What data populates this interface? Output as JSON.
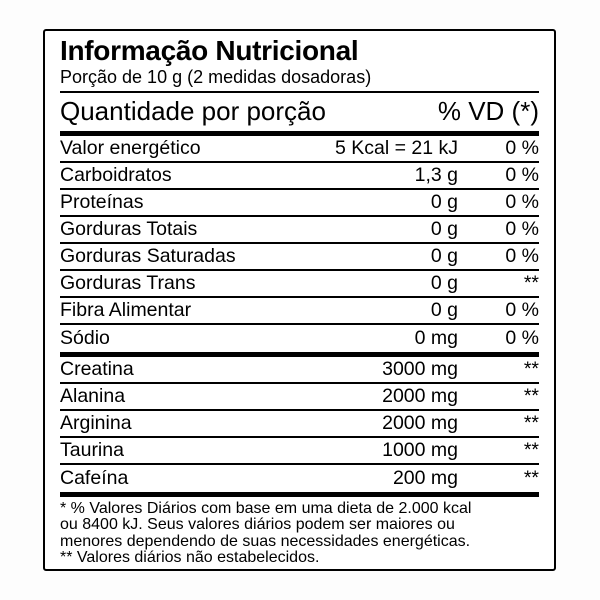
{
  "colors": {
    "text": "#000000",
    "background": "#ffffff",
    "border": "#000000"
  },
  "label": {
    "title": "Informação Nutricional",
    "serving": "Porção de 10 g (2 medidas dosadoras)",
    "header": {
      "quantity": "Quantidade por porção",
      "vd": "% VD (*)"
    },
    "rows": [
      {
        "name": "Valor energético",
        "value": "5 Kcal = 21 kJ",
        "vd": "0 %"
      },
      {
        "name": "Carboidratos",
        "value": "1,3 g",
        "vd": "0 %"
      },
      {
        "name": "Proteínas",
        "value": "0 g",
        "vd": "0 %"
      },
      {
        "name": "Gorduras Totais",
        "value": "0 g",
        "vd": "0 %"
      },
      {
        "name": "Gorduras Saturadas",
        "value": "0 g",
        "vd": "0 %"
      },
      {
        "name": "Gorduras Trans",
        "value": "0 g",
        "vd": "**"
      },
      {
        "name": "Fibra Alimentar",
        "value": "0 g",
        "vd": "0 %"
      },
      {
        "name": "Sódio",
        "value": "0 mg",
        "vd": "0 %"
      }
    ],
    "supplements": [
      {
        "name": "Creatina",
        "value": "3000 mg",
        "vd": "**"
      },
      {
        "name": "Alanina",
        "value": "2000 mg",
        "vd": "**"
      },
      {
        "name": "Arginina",
        "value": "2000 mg",
        "vd": "**"
      },
      {
        "name": "Taurina",
        "value": "1000 mg",
        "vd": "**"
      },
      {
        "name": "Cafeína",
        "value": "200 mg",
        "vd": "**"
      }
    ],
    "footnotes": [
      "* % Valores Diários com base em uma dieta de 2.000 kcal",
      "ou 8400 kJ. Seus valores diários podem ser maiores ou",
      "menores dependendo de suas necessidades energéticas.",
      "** Valores diários não estabelecidos."
    ]
  }
}
